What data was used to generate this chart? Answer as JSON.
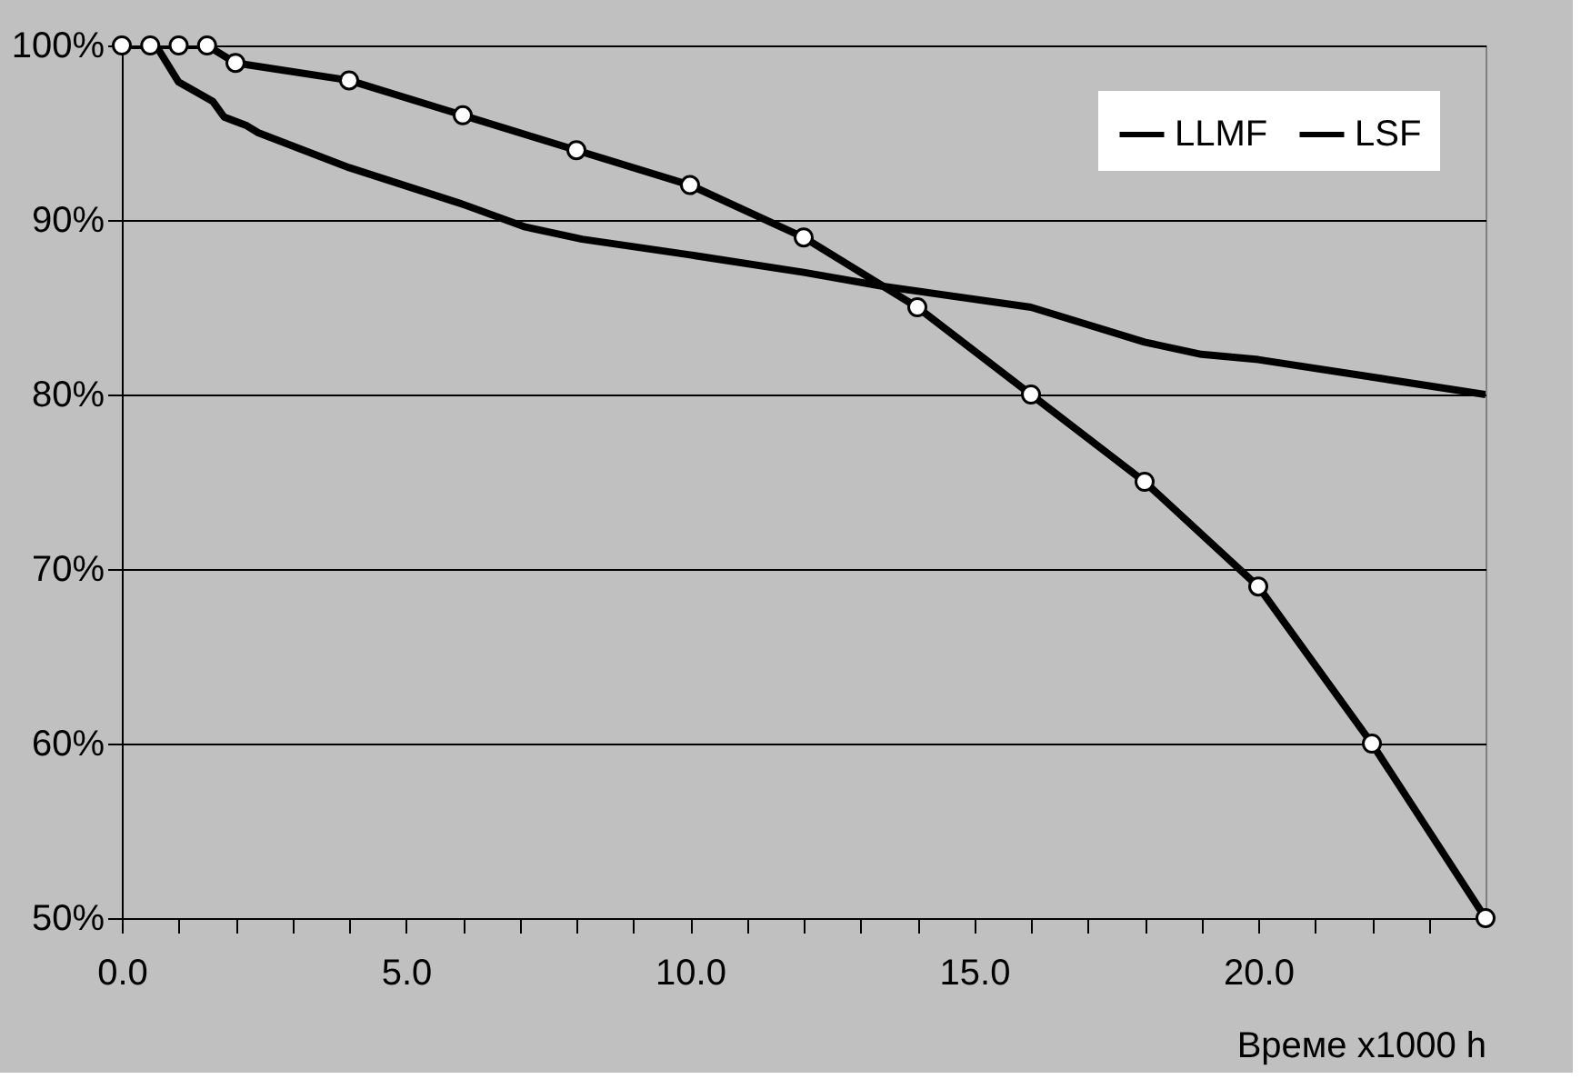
{
  "chart_data": {
    "type": "line",
    "xlabel": "Време x1000 h",
    "xlim": [
      0,
      24
    ],
    "ylim": [
      50,
      100
    ],
    "xticks": [
      {
        "value": 0,
        "label": "0.0"
      },
      {
        "value": 1,
        "label": null
      },
      {
        "value": 2,
        "label": null
      },
      {
        "value": 3,
        "label": null
      },
      {
        "value": 4,
        "label": null
      },
      {
        "value": 5,
        "label": "5.0"
      },
      {
        "value": 6,
        "label": null
      },
      {
        "value": 7,
        "label": null
      },
      {
        "value": 8,
        "label": null
      },
      {
        "value": 9,
        "label": null
      },
      {
        "value": 10,
        "label": "10.0"
      },
      {
        "value": 11,
        "label": null
      },
      {
        "value": 12,
        "label": null
      },
      {
        "value": 13,
        "label": null
      },
      {
        "value": 14,
        "label": null
      },
      {
        "value": 15,
        "label": "15.0"
      },
      {
        "value": 16,
        "label": null
      },
      {
        "value": 17,
        "label": null
      },
      {
        "value": 18,
        "label": null
      },
      {
        "value": 19,
        "label": null
      },
      {
        "value": 20,
        "label": "20.0"
      },
      {
        "value": 21,
        "label": null
      },
      {
        "value": 22,
        "label": null
      },
      {
        "value": 23,
        "label": null
      }
    ],
    "yticks": [
      {
        "value": 50,
        "label": "50%"
      },
      {
        "value": 60,
        "label": "60%"
      },
      {
        "value": 70,
        "label": "70%"
      },
      {
        "value": 80,
        "label": "80%"
      },
      {
        "value": 90,
        "label": "90%"
      },
      {
        "value": 100,
        "label": "100%"
      }
    ],
    "grid": "y",
    "legend": "top right",
    "line_style": "solid",
    "series": [
      {
        "name": "LLMF",
        "color": "#000000",
        "marker": "none",
        "x": [
          0,
          0.6,
          1.0,
          1.6,
          1.8,
          2.2,
          2.4,
          4.0,
          6.0,
          7.1,
          8.1,
          10,
          12,
          13.4,
          16,
          18,
          19,
          20,
          22,
          24
        ],
        "values": [
          100,
          100,
          97.9,
          96.8,
          95.9,
          95.4,
          95.0,
          93.0,
          90.9,
          89.6,
          88.9,
          88,
          87,
          86.2,
          85,
          83,
          82.3,
          82,
          81,
          80
        ]
      },
      {
        "name": "LSF",
        "color": "#000000",
        "marker": "circle",
        "x": [
          0,
          0.5,
          1,
          1.5,
          2,
          4,
          6,
          8,
          10,
          12,
          14,
          16,
          18,
          20,
          22,
          24
        ],
        "values": [
          100,
          100,
          100,
          100,
          99,
          98,
          96,
          94,
          92,
          89,
          85,
          80,
          75,
          69,
          60,
          50
        ]
      }
    ]
  }
}
